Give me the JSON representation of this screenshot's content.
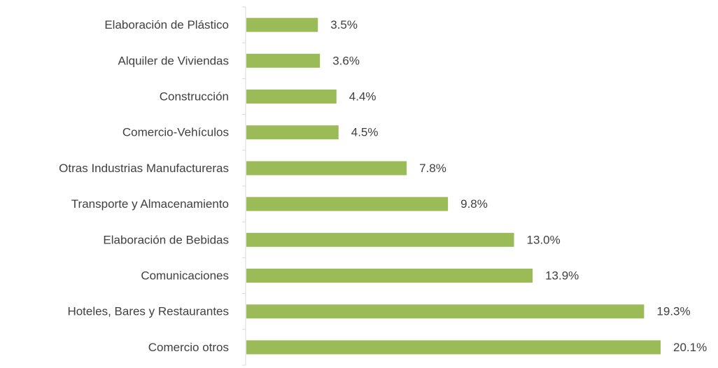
{
  "chart_data": {
    "type": "barh",
    "categories": [
      "Elaboración de Plástico",
      "Alquiler de Viviendas",
      "Construcción",
      "Comercio-Vehículos",
      "Otras Industrias Manufactureras",
      "Transporte y Almacenamiento",
      "Elaboración de Bebidas",
      "Comunicaciones",
      "Hoteles, Bares y Restaurantes",
      "Comercio otros"
    ],
    "values": [
      3.5,
      3.6,
      4.4,
      4.5,
      7.8,
      9.8,
      13.0,
      13.9,
      19.3,
      20.1
    ],
    "value_labels": [
      "3.5%",
      "3.6%",
      "4.4%",
      "4.5%",
      "7.8%",
      "9.8%",
      "13.0%",
      "13.9%",
      "19.3%",
      "20.1%"
    ],
    "color": "#9bbb59"
  }
}
